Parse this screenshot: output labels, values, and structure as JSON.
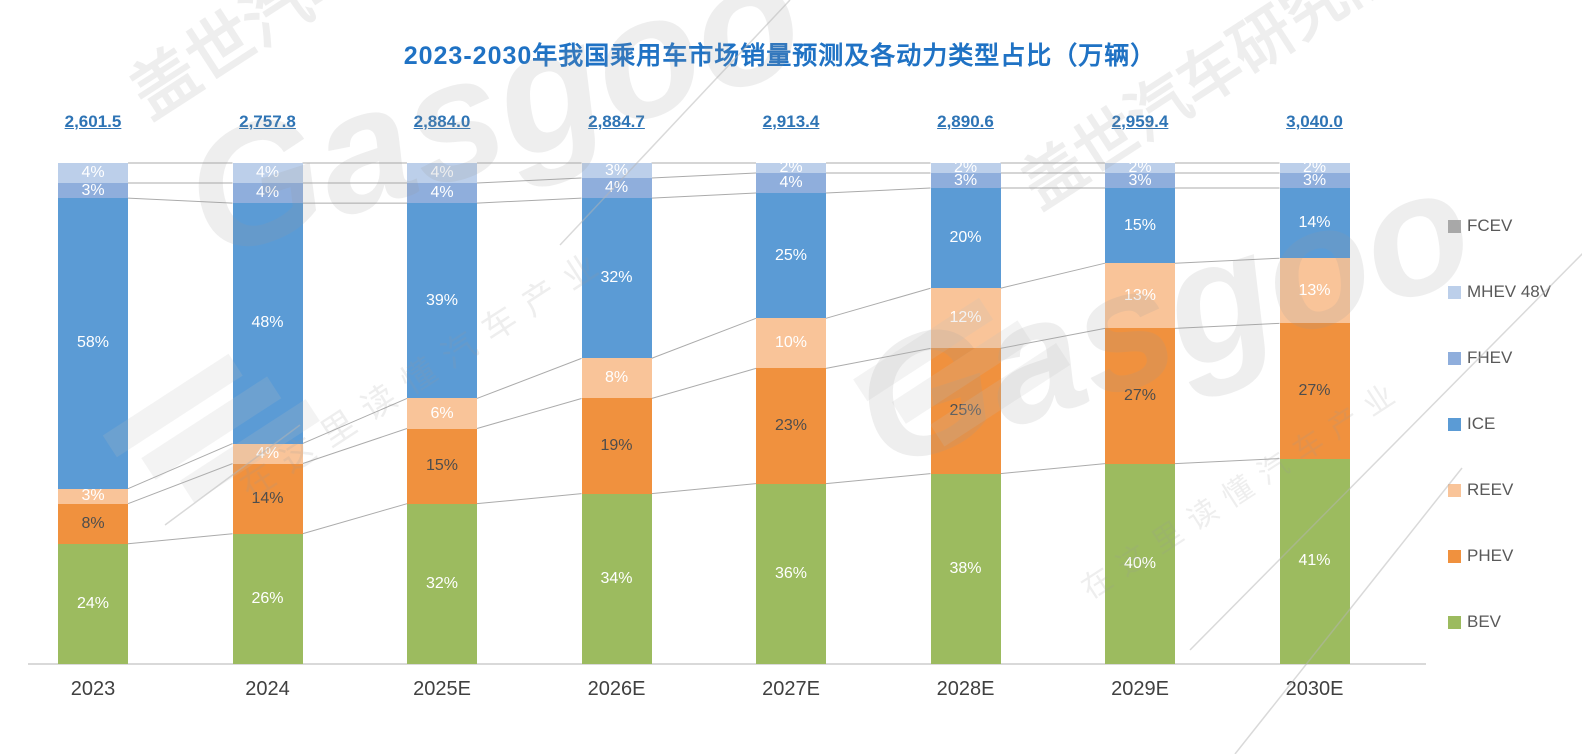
{
  "chart_data": {
    "type": "bar",
    "subtype": "percent-stacked-column",
    "title": "2023-2030年我国乘用车市场销量预测及各动力类型占比（万辆）",
    "categories": [
      "2023",
      "2024",
      "2025E",
      "2026E",
      "2027E",
      "2028E",
      "2029E",
      "2030E"
    ],
    "totals": [
      "2,601.5",
      "2,757.8",
      "2,884.0",
      "2,884.7",
      "2,913.4",
      "2,890.6",
      "2,959.4",
      "3,040.0"
    ],
    "series": [
      {
        "name": "BEV",
        "color": "#9cbb5f",
        "label_color": "#ffffff",
        "values": [
          24,
          26,
          32,
          34,
          36,
          38,
          40,
          41
        ]
      },
      {
        "name": "PHEV",
        "color": "#f0913e",
        "label_color": "#4d4d4d",
        "values": [
          8,
          14,
          15,
          19,
          23,
          25,
          27,
          27
        ]
      },
      {
        "name": "REEV",
        "color": "#f9c499",
        "label_color": "#ffffff",
        "values": [
          3,
          4,
          6,
          8,
          10,
          12,
          13,
          13
        ]
      },
      {
        "name": "ICE",
        "color": "#5b9bd5",
        "label_color": "#ffffff",
        "values": [
          58,
          48,
          39,
          32,
          25,
          20,
          15,
          14
        ]
      },
      {
        "name": "FHEV",
        "color": "#8faedc",
        "label_color": "#ffffff",
        "values": [
          3,
          4,
          4,
          4,
          4,
          3,
          3,
          3
        ]
      },
      {
        "name": "MHEV 48V",
        "color": "#bccfea",
        "label_color": "#ffffff",
        "values": [
          4,
          4,
          4,
          3,
          2,
          2,
          2,
          2
        ]
      },
      {
        "name": "FCEV",
        "color": "#ababab",
        "label_color": "#ffffff",
        "values": [
          0,
          0,
          0,
          0,
          0,
          0,
          0,
          0
        ]
      }
    ],
    "legend": [
      "FCEV",
      "MHEV 48V",
      "FHEV",
      "ICE",
      "REEV",
      "PHEV",
      "BEV"
    ],
    "legend_position": "right",
    "grid": "off",
    "connector_lines": true,
    "value_suffix": "%",
    "ylim": [
      0,
      100
    ]
  },
  "watermark": {
    "brand": "Gasgoo",
    "cn_institute": "盖世汽车研究院",
    "cn_slogan": "在这里读懂汽车产业"
  }
}
